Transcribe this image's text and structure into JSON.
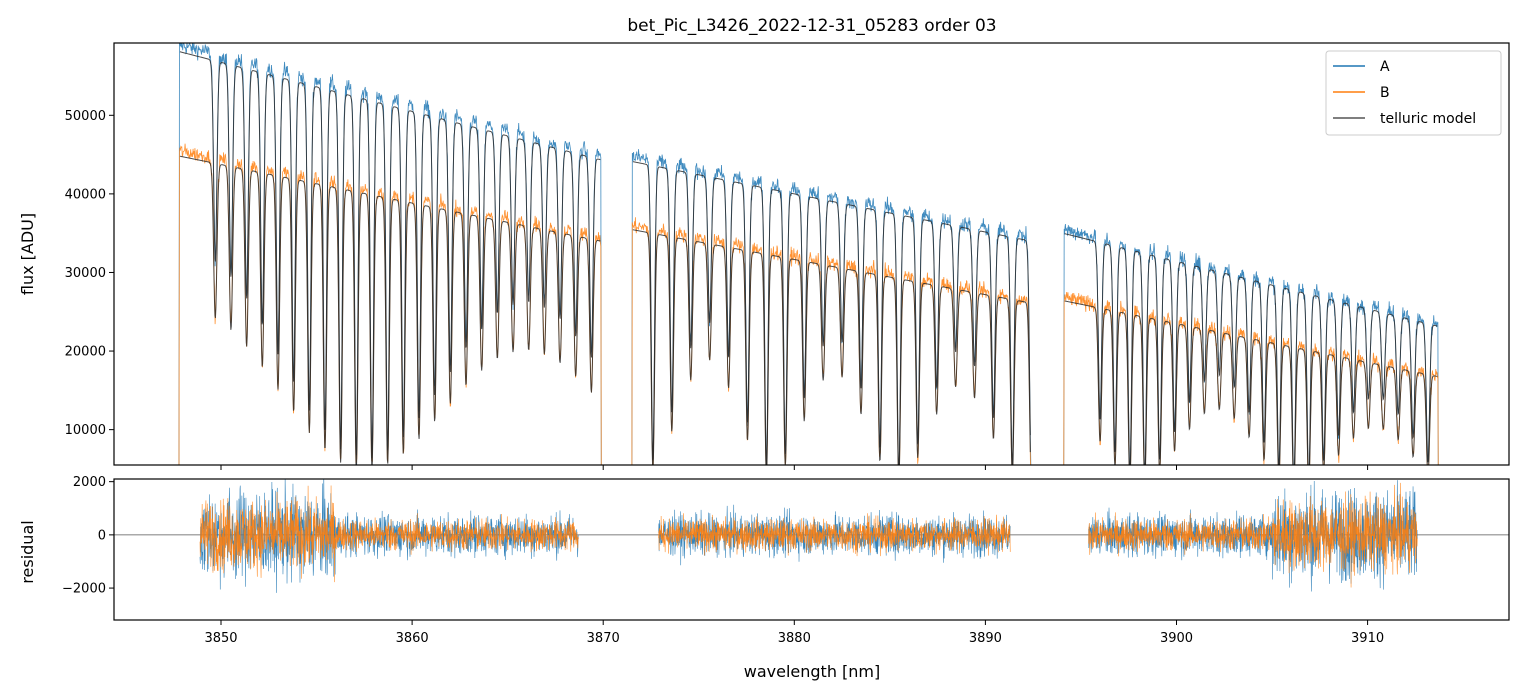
{
  "chart_data": [
    {
      "type": "line",
      "title": "bet_Pic_L3426_2022-12-31_05283  order 03",
      "xlabel": "",
      "ylabel": "flux [ADU]",
      "xlim": [
        3844.4,
        3917.4
      ],
      "ylim": [
        5500,
        59200
      ],
      "yticks": [
        10000,
        20000,
        30000,
        40000,
        50000
      ],
      "ytick_labels": [
        "10000",
        "20000",
        "30000",
        "40000",
        "50000"
      ],
      "xticks": [
        3850,
        3860,
        3870,
        3880,
        3890,
        3900,
        3910
      ],
      "legend_position": "top-right",
      "legend": [
        "A",
        "B",
        "telluric model"
      ],
      "segments": [
        {
          "x_start": 3847.8,
          "x_end": 3869.9,
          "continuum_A": [
            59000,
            45000
          ],
          "continuum_B": [
            45500,
            34500
          ],
          "line_spacing": 0.82,
          "first_line": 3849.7
        },
        {
          "x_start": 3871.5,
          "x_end": 3892.4,
          "continuum_A": [
            44800,
            34500
          ],
          "continuum_B": [
            36000,
            26500
          ],
          "line_spacing": 0.99,
          "first_line": 3872.6
        },
        {
          "x_start": 3894.1,
          "x_end": 3913.7,
          "continuum_A": [
            35500,
            23500
          ],
          "continuum_B": [
            26800,
            17000
          ],
          "line_spacing": 0.78,
          "first_line": 3896.0
        }
      ],
      "series": [
        {
          "name": "A",
          "color": "#1f77b4"
        },
        {
          "name": "B",
          "color": "#ff7f0e"
        },
        {
          "name": "telluric model",
          "color": "#555555"
        }
      ],
      "grid": false
    },
    {
      "type": "line",
      "title": "",
      "xlabel": "wavelength [nm]",
      "ylabel": "residual",
      "xlim": [
        3844.4,
        3917.4
      ],
      "ylim": [
        -3200,
        2100
      ],
      "yticks": [
        -2000,
        0,
        2000
      ],
      "ytick_labels": [
        "−2000",
        "0",
        "2000"
      ],
      "xticks": [
        3850,
        3860,
        3870,
        3880,
        3890,
        3900,
        3910
      ],
      "xtick_labels": [
        "3850",
        "3860",
        "3870",
        "3880",
        "3890",
        "3900",
        "3910"
      ],
      "segments": [
        {
          "x_start": 3848.9,
          "x_end": 3868.7
        },
        {
          "x_start": 3872.9,
          "x_end": 3891.3
        },
        {
          "x_start": 3895.4,
          "x_end": 3912.6
        }
      ],
      "zero_line": 0,
      "series": [
        {
          "name": "A",
          "color": "#1f77b4"
        },
        {
          "name": "B",
          "color": "#ff7f0e"
        }
      ],
      "grid": false
    }
  ]
}
